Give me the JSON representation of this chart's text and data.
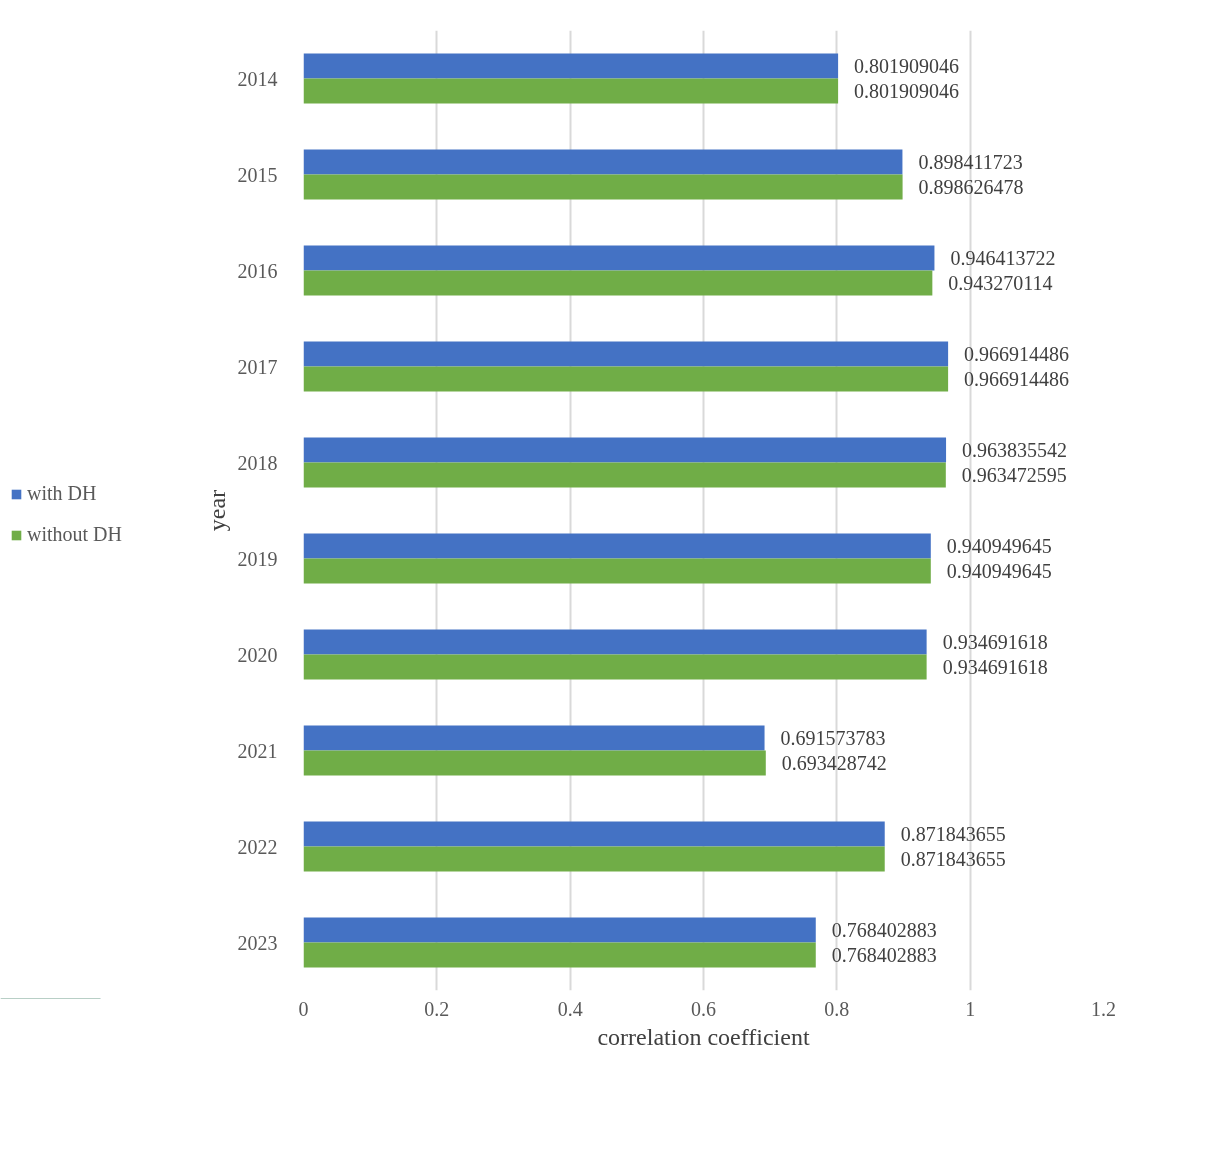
{
  "chart_data": {
    "type": "bar",
    "orientation": "horizontal",
    "xlabel": "correlation coefficient",
    "ylabel": "year",
    "categories": [
      "2014",
      "2015",
      "2016",
      "2017",
      "2018",
      "2019",
      "2020",
      "2021",
      "2022",
      "2023"
    ],
    "series": [
      {
        "name": "with DH",
        "color": "#4472c4",
        "values": [
          0.801909046,
          0.898411723,
          0.946413722,
          0.966914486,
          0.963835542,
          0.940949645,
          0.934691618,
          0.691573783,
          0.871843655,
          0.768402883
        ]
      },
      {
        "name": "without DH",
        "color": "#70ad47",
        "values": [
          0.801909046,
          0.898626478,
          0.943270114,
          0.966914486,
          0.963472595,
          0.940949645,
          0.934691618,
          0.693428742,
          0.871843655,
          0.768402883
        ]
      }
    ],
    "xlim": [
      0,
      1.2
    ],
    "xticks": [
      0,
      0.2,
      0.4,
      0.6,
      0.8,
      1,
      1.2
    ],
    "grid": "x",
    "legend": "left",
    "data_labels": true
  }
}
